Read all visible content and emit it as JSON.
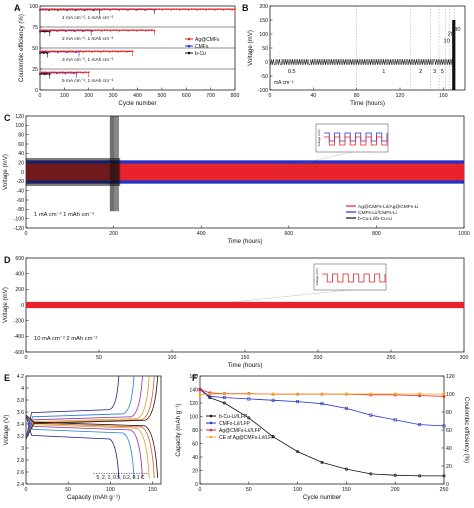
{
  "figure": {
    "panel_letters": [
      "A",
      "B",
      "C",
      "D",
      "E",
      "F"
    ]
  },
  "colors": {
    "red": "#e8242a",
    "blue": "#2233cc",
    "black": "#111111",
    "orange": "#f5a623",
    "axis": "#222222"
  },
  "chart_data": [
    {
      "panel": "A",
      "type": "scatter",
      "xlabel": "Cycle number",
      "ylabel": "Coulombic efficiency (%)",
      "xlim": [
        0,
        800
      ],
      "xticks": [
        0,
        100,
        200,
        300,
        400,
        500,
        600,
        700,
        800
      ],
      "ylim": [
        0,
        100
      ],
      "yticks": [
        0,
        25,
        50,
        75,
        100
      ],
      "legend": [
        "Ag@CMFs",
        "CMFs",
        "b-Cu"
      ],
      "legend_position": "right",
      "subplots": [
        {
          "condition": "1 mA cm⁻², 1 mAh cm⁻²",
          "series": [
            {
              "name": "Ag@CMFs",
              "x_end": 800,
              "ce": 99
            },
            {
              "name": "CMFs",
              "x_end": 470,
              "ce": 98
            },
            {
              "name": "b-Cu",
              "x_end": 245,
              "ce": 96
            }
          ]
        },
        {
          "condition": "2 mA cm⁻², 1 mAh cm⁻²",
          "series": [
            {
              "name": "Ag@CMFs",
              "x_end": 470,
              "ce": 99
            },
            {
              "name": "CMFs",
              "x_end": 210,
              "ce": 97
            },
            {
              "name": "b-Cu",
              "x_end": 40,
              "ce": 92
            }
          ]
        },
        {
          "condition": "3 mA cm⁻², 1 mAh cm⁻²",
          "series": [
            {
              "name": "Ag@CMFs",
              "x_end": 380,
              "ce": 98
            },
            {
              "name": "CMFs",
              "x_end": 160,
              "ce": 96
            },
            {
              "name": "b-Cu",
              "x_end": 30,
              "ce": 90
            }
          ]
        },
        {
          "condition": "5 mA cm⁻², 1 mAh cm⁻²",
          "series": [
            {
              "name": "Ag@CMFs",
              "x_end": 200,
              "ce": 98
            },
            {
              "name": "CMFs",
              "x_end": 150,
              "ce": 95
            },
            {
              "name": "b-Cu",
              "x_end": 40,
              "ce": 88
            }
          ]
        }
      ]
    },
    {
      "panel": "B",
      "type": "line",
      "xlabel": "Time (hours)",
      "ylabel": "Voltage (mV)",
      "xlim": [
        0,
        180
      ],
      "xticks": [
        0,
        40,
        80,
        120,
        160
      ],
      "ylim": [
        -100,
        200
      ],
      "yticks": [
        -100,
        -50,
        0,
        50,
        100,
        150,
        200
      ],
      "unit_label": "mA cm⁻²",
      "rate_annotations": [
        "0.5",
        "1",
        "2",
        "3",
        "5",
        "10",
        "20",
        "30"
      ],
      "rate_segment_boundaries": [
        0,
        80,
        130,
        148,
        156,
        162,
        166,
        170,
        176
      ],
      "steady_amplitude_mV": 10,
      "burst_time_hours": 170
    },
    {
      "panel": "C",
      "type": "line",
      "xlabel": "Time (hours)",
      "ylabel": "Voltage (mV)",
      "xlim": [
        0,
        1000
      ],
      "xticks": [
        0,
        200,
        400,
        600,
        800,
        1000
      ],
      "ylim": [
        -120,
        120
      ],
      "yticks": [
        -120,
        -100,
        -80,
        -60,
        -40,
        -20,
        0,
        20,
        40,
        60,
        80,
        100,
        120
      ],
      "annotation": "1 mA cm⁻²   1 mAh cm⁻²",
      "inset_ylabel": "Voltage (mV)",
      "series": [
        {
          "name": "Ag@CMFs-Li//Ag@CMFs-Li",
          "amplitude_mV": 18,
          "t_end": 1000
        },
        {
          "name": "CMFs-Li//CMFs-Li",
          "amplitude_mV": 25,
          "t_end": 1000
        },
        {
          "name": "b-Cu-Li//b-Cu-Li",
          "amplitude_mV": 30,
          "t_end": 215,
          "failure_spike_mV": 120
        }
      ]
    },
    {
      "panel": "D",
      "type": "line",
      "xlabel": "Time (hours)",
      "ylabel": "Voltage (mV)",
      "xlim": [
        0,
        300
      ],
      "xticks": [
        0,
        50,
        100,
        150,
        200,
        250,
        300
      ],
      "ylim": [
        -600,
        600
      ],
      "yticks": [
        -600,
        -400,
        -200,
        0,
        200,
        400,
        600
      ],
      "annotation": "10 mA cm⁻²   2 mAh cm⁻²",
      "inset_ylabel": "Voltage (mV)",
      "series": [
        {
          "name": "Ag@CMFs-Li//Ag@CMFs-Li",
          "amplitude_mV": 40,
          "t_end": 300
        }
      ]
    },
    {
      "panel": "E",
      "type": "line",
      "xlabel": "Capacity (mAh g⁻¹)",
      "ylabel": "Voltage (V)",
      "xlim": [
        0,
        160
      ],
      "xticks": [
        0,
        50,
        100,
        150
      ],
      "ylim": [
        2.4,
        4.2
      ],
      "yticks": [
        2.4,
        2.6,
        2.8,
        3.0,
        3.2,
        3.4,
        3.6,
        3.8,
        4.0,
        4.2
      ],
      "rate_label": "5, 2, 1, 0.5, 0.2, 0.1 C",
      "series": [
        {
          "rate": "5 C",
          "capacity": 110,
          "charge_plateau": 3.62,
          "discharge_plateau": 3.18,
          "color": "#1a1a8c"
        },
        {
          "rate": "2 C",
          "capacity": 128,
          "charge_plateau": 3.55,
          "discharge_plateau": 3.28,
          "color": "#1b7fd6"
        },
        {
          "rate": "1 C",
          "capacity": 138,
          "charge_plateau": 3.5,
          "discharge_plateau": 3.33,
          "color": "#8b2bb0"
        },
        {
          "rate": "0.5 C",
          "capacity": 146,
          "charge_plateau": 3.47,
          "discharge_plateau": 3.36,
          "color": "#d4a017"
        },
        {
          "rate": "0.2 C",
          "capacity": 152,
          "charge_plateau": 3.45,
          "discharge_plateau": 3.38,
          "color": "#e0551f"
        },
        {
          "rate": "0.1 C",
          "capacity": 156,
          "charge_plateau": 3.44,
          "discharge_plateau": 3.4,
          "color": "#111111"
        }
      ]
    },
    {
      "panel": "F",
      "type": "scatter",
      "xlabel": "Cycle number",
      "ylabel": "Capacity (mAh g⁻¹)",
      "y2label": "Coulombic efficiency (%)",
      "xlim": [
        0,
        250
      ],
      "xticks": [
        0,
        50,
        100,
        150,
        200,
        250
      ],
      "ylim": [
        0,
        160
      ],
      "yticks": [
        0,
        20,
        40,
        60,
        80,
        100,
        120,
        140,
        160
      ],
      "y2lim": [
        0,
        120
      ],
      "y2ticks": [
        0,
        20,
        40,
        60,
        80,
        100,
        120
      ],
      "series": [
        {
          "name": "b-Cu-Li//LFP",
          "x": [
            0,
            10,
            25,
            50,
            75,
            100,
            125,
            150,
            175,
            200,
            225,
            250
          ],
          "y": [
            140,
            128,
            120,
            98,
            70,
            48,
            32,
            22,
            15,
            13,
            12,
            12
          ]
        },
        {
          "name": "CMFs-Li//LFP",
          "x": [
            0,
            10,
            25,
            50,
            75,
            100,
            125,
            150,
            175,
            200,
            225,
            250
          ],
          "y": [
            140,
            130,
            128,
            126,
            124,
            122,
            119,
            112,
            102,
            95,
            88,
            86
          ]
        },
        {
          "name": "Ag@CMFs-Li//LFP",
          "x": [
            0,
            10,
            25,
            50,
            75,
            100,
            125,
            150,
            175,
            200,
            225,
            250
          ],
          "y": [
            140,
            135,
            134,
            134,
            133,
            133,
            133,
            133,
            132,
            132,
            131,
            130
          ]
        },
        {
          "name": "CE of Ag@CMFs-Li//LFP",
          "axis": "y2",
          "x": [
            0,
            10,
            25,
            50,
            75,
            100,
            125,
            150,
            175,
            200,
            225,
            250
          ],
          "y": [
            99,
            100,
            100,
            100,
            100,
            100,
            100,
            100,
            100,
            100,
            100,
            100
          ]
        }
      ]
    }
  ]
}
